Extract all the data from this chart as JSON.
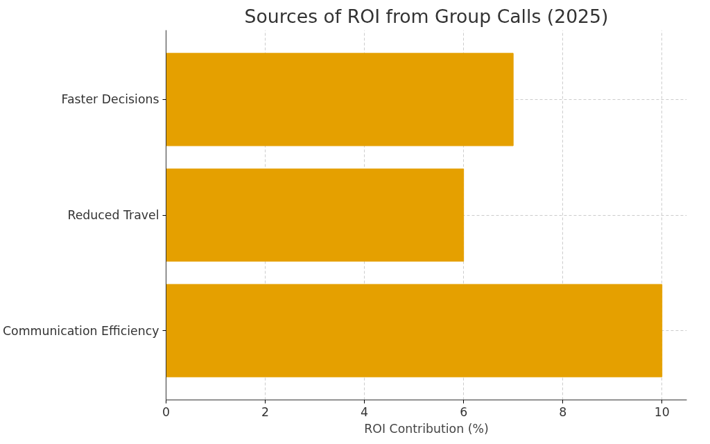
{
  "chart_data": {
    "type": "bar",
    "orientation": "horizontal",
    "title": "Sources of ROI from Group Calls (2025)",
    "xlabel": "ROI Contribution (%)",
    "categories": [
      "Faster Decisions",
      "Reduced Travel",
      "Communication Efficiency"
    ],
    "values": [
      7,
      6,
      10
    ],
    "color": "#e5a000",
    "xlim": [
      0,
      10.5
    ],
    "xticks": [
      0,
      2,
      4,
      6,
      8,
      10
    ],
    "grid": true
  }
}
